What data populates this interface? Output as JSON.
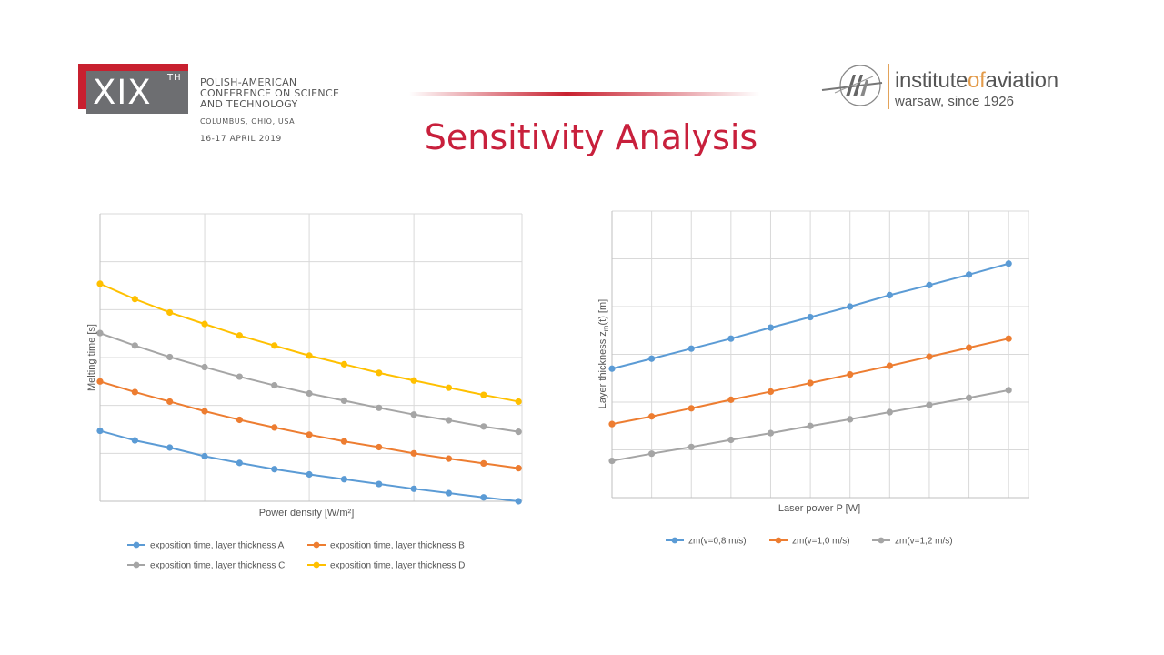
{
  "conference": {
    "numeral": "XIX",
    "numeral_suffix": "TH",
    "name_line1": "POLISH-AMERICAN",
    "name_line2": "CONFERENCE ON SCIENCE",
    "name_line3": "AND TECHNOLOGY",
    "location": "COLUMBUS, OHIO, USA",
    "dates": "16-17 APRIL 2019",
    "accent_color": "#c8202f",
    "box_color": "#6d6e71"
  },
  "institute": {
    "name_part1": "institute",
    "name_part2": "of",
    "name_part3": "aviation",
    "tagline": "warsaw, since 1926",
    "accent_color": "#e39b4a"
  },
  "slide": {
    "title": "Sensitivity Analysis",
    "title_color": "#c8203c"
  },
  "chart_data": [
    {
      "type": "line",
      "xlabel": "Power density [W/m²]",
      "ylabel": "Melting time [s]",
      "grid": true,
      "legend": "bottom",
      "x": [
        1,
        2,
        3,
        4,
        5,
        6,
        7,
        8,
        9,
        10,
        11,
        12,
        13
      ],
      "xlim": [
        1,
        13.1
      ],
      "ylim": [
        0,
        6
      ],
      "series": [
        {
          "name": "exposition time, layer thickness A",
          "color": "#5b9bd5",
          "values": [
            1.47,
            1.27,
            1.12,
            0.94,
            0.8,
            0.67,
            0.56,
            0.46,
            0.36,
            0.26,
            0.17,
            0.08,
            0.0
          ]
        },
        {
          "name": "exposition time, layer thickness B",
          "color": "#ed7d31",
          "values": [
            2.5,
            2.28,
            2.08,
            1.88,
            1.7,
            1.54,
            1.39,
            1.25,
            1.13,
            1.0,
            0.89,
            0.79,
            0.69
          ]
        },
        {
          "name": "exposition time, layer thickness C",
          "color": "#a5a5a5",
          "values": [
            3.51,
            3.25,
            3.01,
            2.8,
            2.6,
            2.42,
            2.25,
            2.1,
            1.95,
            1.81,
            1.69,
            1.56,
            1.45
          ]
        },
        {
          "name": "exposition time, layer thickness D",
          "color": "#ffc000",
          "values": [
            4.54,
            4.22,
            3.94,
            3.7,
            3.46,
            3.25,
            3.04,
            2.86,
            2.68,
            2.52,
            2.37,
            2.22,
            2.08
          ]
        }
      ]
    },
    {
      "type": "line",
      "xlabel": "Laser power P [W]",
      "ylabel": "Layer thickness z",
      "ylabel_sub": "m",
      "ylabel_suffix": "(t) [m]",
      "grid": true,
      "legend": "bottom",
      "x": [
        1,
        2,
        3,
        4,
        5,
        6,
        7,
        8,
        9,
        10,
        11
      ],
      "xlim": [
        1,
        11.5
      ],
      "ylim": [
        0,
        6
      ],
      "series": [
        {
          "name": "zm(v=0,8 m/s)",
          "color": "#5b9bd5",
          "values": [
            2.7,
            2.91,
            3.12,
            3.33,
            3.56,
            3.78,
            4.0,
            4.24,
            4.45,
            4.67,
            4.9
          ]
        },
        {
          "name": "zm(v=1,0 m/s)",
          "color": "#ed7d31",
          "values": [
            1.54,
            1.7,
            1.87,
            2.05,
            2.22,
            2.4,
            2.58,
            2.76,
            2.95,
            3.14,
            3.33
          ]
        },
        {
          "name": "zm(v=1,2 m/s)",
          "color": "#a5a5a5",
          "values": [
            0.77,
            0.92,
            1.06,
            1.21,
            1.35,
            1.5,
            1.64,
            1.79,
            1.94,
            2.09,
            2.25
          ]
        }
      ]
    }
  ]
}
